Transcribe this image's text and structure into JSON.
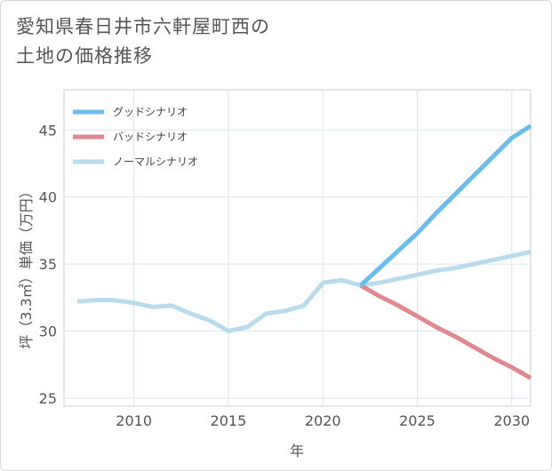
{
  "title": {
    "line1": "愛知県春日井市六軒屋町西の",
    "line2": "土地の価格推移"
  },
  "chart_data": {
    "type": "line",
    "xlabel": "年",
    "ylabel": "坪（3.3㎡）単価（万円）",
    "xlim": [
      2006.3,
      2031
    ],
    "ylim": [
      24.4,
      48
    ],
    "x_ticks": [
      2010,
      2015,
      2020,
      2025,
      2030
    ],
    "y_ticks": [
      25,
      30,
      35,
      40,
      45
    ],
    "grid": true,
    "legend_position": "top-left",
    "series": [
      {
        "name": "グッドシナリオ",
        "color": "#6bbcee",
        "x": [
          2022,
          2023,
          2024,
          2025,
          2026,
          2027,
          2028,
          2029,
          2030,
          2031
        ],
        "y": [
          33.4,
          34.7,
          36.0,
          37.3,
          38.8,
          40.2,
          41.6,
          43.0,
          44.4,
          45.3
        ]
      },
      {
        "name": "バッドシナリオ",
        "color": "#e0878f",
        "x": [
          2022,
          2023,
          2024,
          2025,
          2026,
          2027,
          2028,
          2029,
          2030,
          2031
        ],
        "y": [
          33.4,
          32.6,
          31.9,
          31.1,
          30.3,
          29.6,
          28.8,
          28.0,
          27.3,
          26.5
        ]
      },
      {
        "name": "ノーマルシナリオ",
        "color": "#b8dcec",
        "x": [
          2007,
          2008,
          2009,
          2010,
          2011,
          2012,
          2013,
          2014,
          2015,
          2016,
          2017,
          2018,
          2019,
          2020,
          2021,
          2022,
          2023,
          2024,
          2025,
          2026,
          2027,
          2028,
          2029,
          2030,
          2031
        ],
        "y": [
          32.2,
          32.3,
          32.3,
          32.1,
          31.8,
          31.9,
          31.3,
          30.8,
          30.0,
          30.3,
          31.3,
          31.5,
          31.9,
          33.6,
          33.8,
          33.4,
          33.6,
          33.9,
          34.2,
          34.5,
          34.7,
          35.0,
          35.3,
          35.6,
          35.9
        ]
      }
    ]
  }
}
